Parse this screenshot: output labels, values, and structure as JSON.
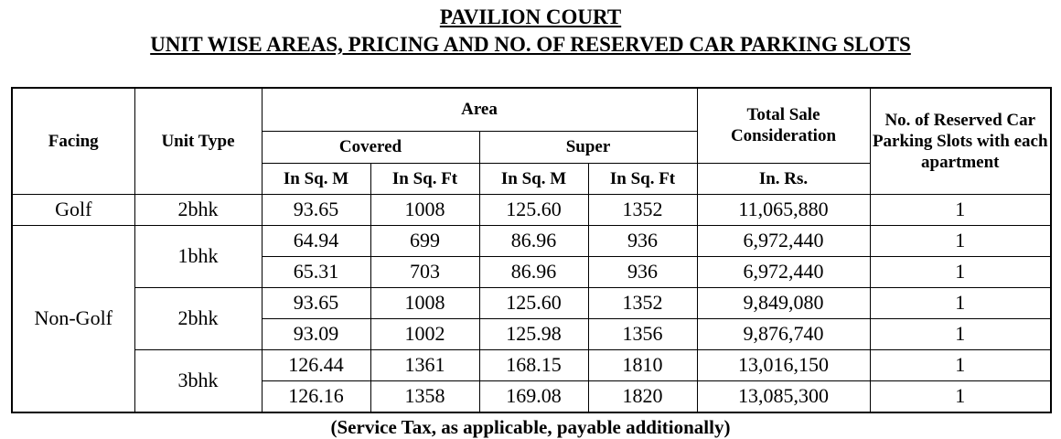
{
  "header": {
    "title": "PAVILION COURT",
    "subtitle": "UNIT WISE AREAS, PRICING AND NO. OF RESERVED CAR PARKING SLOTS"
  },
  "table": {
    "columns": {
      "facing": "Facing",
      "unit_type": "Unit Type",
      "area": "Area",
      "covered": "Covered",
      "super": "Super",
      "sqm_covered": "In Sq. M",
      "sqft_covered": "In Sq. Ft",
      "sqm_super": "In Sq. M",
      "sqft_super": "In Sq. Ft",
      "total": "Total Sale Consideration",
      "total_unit": "In. Rs.",
      "parking": "No. of Reserved Car Parking Slots with each apartment"
    },
    "groups": [
      {
        "facing": "Golf",
        "units": [
          {
            "type": "2bhk",
            "rows": [
              [
                "93.65",
                "1008",
                "125.60",
                "1352",
                "11,065,880",
                "1"
              ]
            ]
          }
        ]
      },
      {
        "facing": "Non-Golf",
        "units": [
          {
            "type": "1bhk",
            "rows": [
              [
                "64.94",
                "699",
                "86.96",
                "936",
                "6,972,440",
                "1"
              ],
              [
                "65.31",
                "703",
                "86.96",
                "936",
                "6,972,440",
                "1"
              ]
            ]
          },
          {
            "type": "2bhk",
            "rows": [
              [
                "93.65",
                "1008",
                "125.60",
                "1352",
                "9,849,080",
                "1"
              ],
              [
                "93.09",
                "1002",
                "125.98",
                "1356",
                "9,876,740",
                "1"
              ]
            ]
          },
          {
            "type": "3bhk",
            "rows": [
              [
                "126.44",
                "1361",
                "168.15",
                "1810",
                "13,016,150",
                "1"
              ],
              [
                "126.16",
                "1358",
                "169.08",
                "1820",
                "13,085,300",
                "1"
              ]
            ]
          }
        ]
      }
    ]
  },
  "footer": {
    "note": "(Service Tax, as applicable, payable additionally)"
  }
}
